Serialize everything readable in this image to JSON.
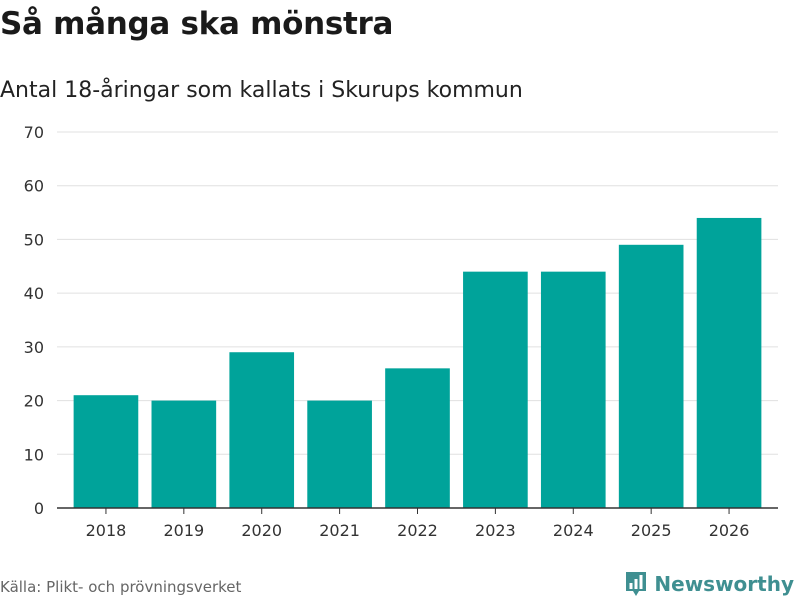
{
  "header": {
    "title": "Så många ska mönstra",
    "subtitle": "Antal 18-åringar som kallats i Skurups kommun"
  },
  "footer": {
    "source": "Källa: Plikt- och prövningsverket",
    "brand": "Newsworthy",
    "brand_icon": "bar-chart-logo-icon"
  },
  "colors": {
    "bar": "#00a39a",
    "grid": "#e0e0e0",
    "axis": "#333333",
    "brand": "#3f8f91"
  },
  "chart_data": {
    "type": "bar",
    "title": "Så många ska mönstra",
    "subtitle": "Antal 18-åringar som kallats i Skurups kommun",
    "categories": [
      "2018",
      "2019",
      "2020",
      "2021",
      "2022",
      "2023",
      "2024",
      "2025",
      "2026"
    ],
    "values": [
      21,
      20,
      29,
      20,
      26,
      44,
      44,
      49,
      54
    ],
    "xlabel": "",
    "ylabel": "",
    "ylim": [
      0,
      70
    ],
    "yticks": [
      0,
      10,
      20,
      30,
      40,
      50,
      60,
      70
    ],
    "grid": true,
    "legend": "none"
  }
}
